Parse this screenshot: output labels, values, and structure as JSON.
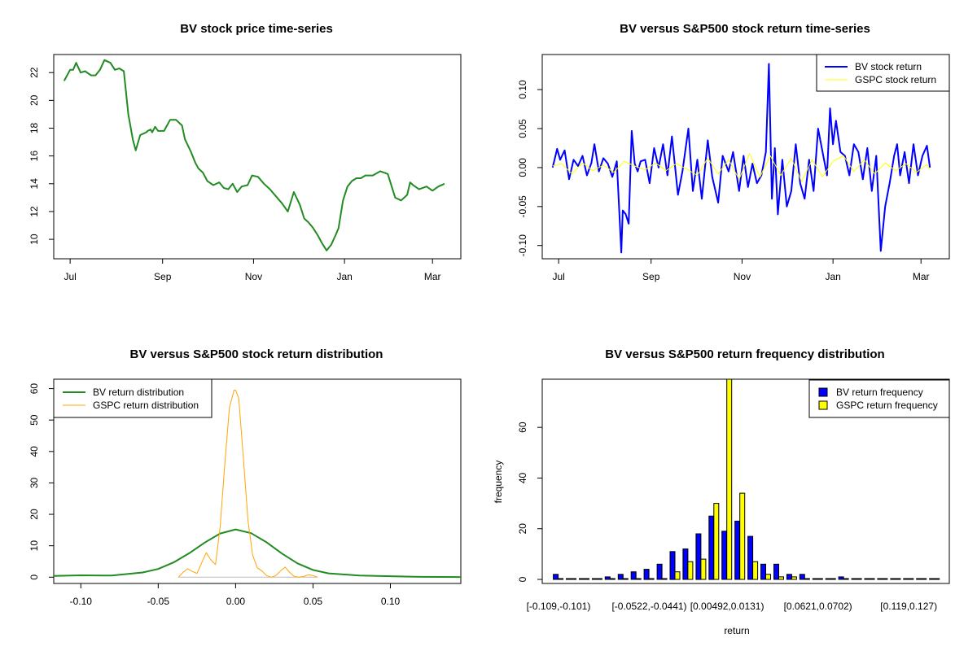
{
  "chart_data": [
    {
      "id": "price",
      "type": "line",
      "title": "BV stock price time-series",
      "xlabel": "",
      "ylabel": "",
      "x_ticks": [
        "Jul",
        "Sep",
        "Nov",
        "Jan",
        "Mar"
      ],
      "y_ticks": [
        "10",
        "12",
        "14",
        "16",
        "18",
        "20",
        "22"
      ],
      "x_range": [
        "2014-06-20",
        "2015-03-20"
      ],
      "x_tick_dates": [
        "2014-07-01",
        "2014-09-01",
        "2014-11-01",
        "2015-01-01",
        "2015-03-01"
      ],
      "ylim": [
        8.6,
        23.3
      ],
      "grid": false,
      "series": [
        {
          "name": "",
          "color": "#228B22",
          "x": [
            "2014-06-27",
            "2014-07-01",
            "2014-07-03",
            "2014-07-05",
            "2014-07-08",
            "2014-07-11",
            "2014-07-15",
            "2014-07-18",
            "2014-07-21",
            "2014-07-24",
            "2014-07-28",
            "2014-07-31",
            "2014-08-03",
            "2014-08-06",
            "2014-08-09",
            "2014-08-12",
            "2014-08-14",
            "2014-08-17",
            "2014-08-19",
            "2014-08-21",
            "2014-08-22",
            "2014-08-24",
            "2014-08-25",
            "2014-08-27",
            "2014-08-29",
            "2014-09-02",
            "2014-09-06",
            "2014-09-10",
            "2014-09-14",
            "2014-09-16",
            "2014-09-20",
            "2014-09-23",
            "2014-09-25",
            "2014-09-28",
            "2014-10-01",
            "2014-10-05",
            "2014-10-09",
            "2014-10-12",
            "2014-10-15",
            "2014-10-18",
            "2014-10-21",
            "2014-10-24",
            "2014-10-28",
            "2014-10-31",
            "2014-11-04",
            "2014-11-08",
            "2014-11-12",
            "2014-11-16",
            "2014-11-20",
            "2014-11-24",
            "2014-11-28",
            "2014-12-02",
            "2014-12-05",
            "2014-12-08",
            "2014-12-11",
            "2014-12-14",
            "2014-12-17",
            "2014-12-20",
            "2014-12-23",
            "2014-12-26",
            "2014-12-28",
            "2014-12-31",
            "2015-01-03",
            "2015-01-06",
            "2015-01-09",
            "2015-01-12",
            "2015-01-15",
            "2015-01-20",
            "2015-01-25",
            "2015-01-30",
            "2015-02-04",
            "2015-02-08",
            "2015-02-12",
            "2015-02-14",
            "2015-02-16",
            "2015-02-20",
            "2015-02-25",
            "2015-03-01",
            "2015-03-05",
            "2015-03-09"
          ],
          "values": [
            21.4,
            22.2,
            22.2,
            22.7,
            22.0,
            22.1,
            21.8,
            21.8,
            22.2,
            22.9,
            22.7,
            22.2,
            22.3,
            22.1,
            19.0,
            17.2,
            16.4,
            17.5,
            17.6,
            17.7,
            17.8,
            17.9,
            17.7,
            18.1,
            17.8,
            17.8,
            18.6,
            18.6,
            18.2,
            17.2,
            16.3,
            15.5,
            15.1,
            14.8,
            14.2,
            13.9,
            14.1,
            13.7,
            13.6,
            14.0,
            13.4,
            13.8,
            13.9,
            14.6,
            14.5,
            14.0,
            13.6,
            13.1,
            12.6,
            12.0,
            13.4,
            12.5,
            11.5,
            11.2,
            10.8,
            10.3,
            9.7,
            9.2,
            9.6,
            10.3,
            10.8,
            12.8,
            13.8,
            14.2,
            14.4,
            14.4,
            14.6,
            14.6,
            14.9,
            14.7,
            13.0,
            12.8,
            13.2,
            14.1,
            13.9,
            13.6,
            13.8,
            13.5,
            13.8,
            14.0
          ]
        }
      ]
    },
    {
      "id": "returns",
      "type": "line",
      "title": "BV versus S&P500 stock return time-series",
      "xlabel": "",
      "ylabel": "",
      "x_ticks": [
        "Jul",
        "Sep",
        "Nov",
        "Jan",
        "Mar"
      ],
      "y_ticks": [
        "-0.10",
        "-0.05",
        "0.00",
        "0.05",
        "0.10"
      ],
      "x_range": [
        "2014-06-20",
        "2015-03-20"
      ],
      "x_tick_dates": [
        "2014-07-01",
        "2014-09-01",
        "2014-11-01",
        "2015-01-01",
        "2015-03-01"
      ],
      "ylim": [
        -0.117,
        0.145
      ],
      "grid": false,
      "legend": "top-right",
      "series": [
        {
          "name": "BV stock return",
          "color": "#0000FF",
          "x": [
            "2014-06-27",
            "2014-06-30",
            "2014-07-02",
            "2014-07-05",
            "2014-07-08",
            "2014-07-11",
            "2014-07-14",
            "2014-07-17",
            "2014-07-20",
            "2014-07-23",
            "2014-07-25",
            "2014-07-28",
            "2014-07-31",
            "2014-08-03",
            "2014-08-06",
            "2014-08-09",
            "2014-08-12",
            "2014-08-13",
            "2014-08-15",
            "2014-08-17",
            "2014-08-19",
            "2014-08-21",
            "2014-08-23",
            "2014-08-25",
            "2014-08-28",
            "2014-08-31",
            "2014-09-03",
            "2014-09-06",
            "2014-09-09",
            "2014-09-12",
            "2014-09-15",
            "2014-09-19",
            "2014-09-22",
            "2014-09-26",
            "2014-09-29",
            "2014-10-02",
            "2014-10-05",
            "2014-10-09",
            "2014-10-12",
            "2014-10-16",
            "2014-10-19",
            "2014-10-23",
            "2014-10-26",
            "2014-10-30",
            "2014-11-02",
            "2014-11-05",
            "2014-11-08",
            "2014-11-11",
            "2014-11-14",
            "2014-11-17",
            "2014-11-19",
            "2014-11-21",
            "2014-11-23",
            "2014-11-25",
            "2014-11-28",
            "2014-12-01",
            "2014-12-04",
            "2014-12-07",
            "2014-12-10",
            "2014-12-13",
            "2014-12-16",
            "2014-12-19",
            "2014-12-22",
            "2014-12-25",
            "2014-12-28",
            "2014-12-30",
            "2015-01-01",
            "2015-01-03",
            "2015-01-06",
            "2015-01-09",
            "2015-01-12",
            "2015-01-15",
            "2015-01-18",
            "2015-01-21",
            "2015-01-24",
            "2015-01-27",
            "2015-01-30",
            "2015-02-02",
            "2015-02-05",
            "2015-02-08",
            "2015-02-11",
            "2015-02-13",
            "2015-02-15",
            "2015-02-18",
            "2015-02-21",
            "2015-02-24",
            "2015-02-27",
            "2015-03-02",
            "2015-03-05",
            "2015-03-07"
          ],
          "values": [
            0.0,
            0.024,
            0.01,
            0.022,
            -0.015,
            0.01,
            0.002,
            0.015,
            -0.01,
            0.006,
            0.03,
            -0.005,
            0.012,
            0.005,
            -0.012,
            0.008,
            -0.109,
            -0.055,
            -0.06,
            -0.072,
            0.047,
            0.005,
            -0.005,
            0.008,
            0.01,
            -0.02,
            0.025,
            0.0,
            0.03,
            -0.01,
            0.04,
            -0.035,
            -0.005,
            0.05,
            -0.03,
            0.01,
            -0.04,
            0.035,
            -0.012,
            -0.045,
            0.015,
            -0.005,
            0.02,
            -0.03,
            0.015,
            -0.025,
            0.005,
            -0.02,
            -0.01,
            0.02,
            0.133,
            -0.04,
            0.025,
            -0.06,
            0.01,
            -0.05,
            -0.03,
            0.03,
            -0.02,
            -0.04,
            0.01,
            -0.03,
            0.05,
            0.02,
            -0.01,
            0.076,
            0.03,
            0.06,
            0.02,
            0.015,
            -0.01,
            0.03,
            0.02,
            -0.015,
            0.025,
            -0.03,
            0.015,
            -0.107,
            -0.05,
            -0.02,
            0.015,
            0.03,
            -0.01,
            0.02,
            -0.02,
            0.03,
            -0.01,
            0.015,
            0.028,
            0.0
          ]
        },
        {
          "name": "GSPC stock return",
          "color": "#FFFF00",
          "x": [
            "2014-06-27",
            "2014-07-03",
            "2014-07-10",
            "2014-07-17",
            "2014-07-24",
            "2014-07-31",
            "2014-08-07",
            "2014-08-14",
            "2014-08-21",
            "2014-08-28",
            "2014-09-04",
            "2014-09-11",
            "2014-09-18",
            "2014-09-25",
            "2014-10-02",
            "2014-10-09",
            "2014-10-16",
            "2014-10-23",
            "2014-10-30",
            "2014-11-06",
            "2014-11-13",
            "2014-11-20",
            "2014-11-27",
            "2014-12-04",
            "2014-12-11",
            "2014-12-18",
            "2014-12-25",
            "2015-01-01",
            "2015-01-08",
            "2015-01-15",
            "2015-01-22",
            "2015-01-29",
            "2015-02-05",
            "2015-02-12",
            "2015-02-19",
            "2015-02-26",
            "2015-03-05",
            "2015-03-07"
          ],
          "values": [
            0.002,
            0.005,
            -0.008,
            0.006,
            -0.004,
            0.003,
            -0.006,
            0.008,
            0.002,
            -0.003,
            0.006,
            -0.004,
            0.005,
            -0.002,
            -0.01,
            0.012,
            -0.008,
            0.01,
            -0.015,
            0.018,
            -0.012,
            0.015,
            -0.01,
            0.012,
            -0.018,
            0.01,
            -0.012,
            0.008,
            0.015,
            -0.005,
            0.01,
            -0.008,
            0.006,
            -0.004,
            0.005,
            -0.006,
            0.004,
            -0.003
          ]
        }
      ]
    },
    {
      "id": "density",
      "type": "line",
      "title": "BV versus S&P500 stock return distribution",
      "xlabel": "",
      "ylabel": "",
      "x_ticks": [
        "-0.10",
        "-0.05",
        "0.00",
        "0.05",
        "0.10"
      ],
      "y_ticks": [
        "0",
        "10",
        "20",
        "30",
        "40",
        "50",
        "60"
      ],
      "xlim": [
        -0.1175,
        0.1455
      ],
      "ylim": [
        -2,
        63
      ],
      "grid": false,
      "legend": "top-left",
      "series": [
        {
          "name": "BV return distribution",
          "color": "#228B22",
          "x": [
            -0.1175,
            -0.1,
            -0.08,
            -0.06,
            -0.05,
            -0.04,
            -0.03,
            -0.02,
            -0.01,
            0.0,
            0.01,
            0.02,
            0.03,
            0.04,
            0.05,
            0.06,
            0.08,
            0.1,
            0.12,
            0.1455
          ],
          "values": [
            0.4,
            0.6,
            0.5,
            1.5,
            2.6,
            4.7,
            7.6,
            11.0,
            13.9,
            15.2,
            14.0,
            11.1,
            7.5,
            4.4,
            2.3,
            1.2,
            0.5,
            0.3,
            0.1,
            0.05
          ]
        },
        {
          "name": "GSPC return distribution",
          "color": "#FFA500",
          "x": [
            -0.037,
            -0.034,
            -0.031,
            -0.028,
            -0.025,
            -0.022,
            -0.019,
            -0.016,
            -0.013,
            -0.01,
            -0.007,
            -0.004,
            -0.001,
            0.0,
            0.002,
            0.005,
            0.008,
            0.011,
            0.014,
            0.017,
            0.02,
            0.023,
            0.026,
            0.029,
            0.032,
            0.035,
            0.038,
            0.041,
            0.044,
            0.047,
            0.05,
            0.053
          ],
          "values": [
            0,
            1.5,
            2.7,
            1.8,
            1.2,
            4.5,
            7.8,
            5.5,
            4.0,
            16.0,
            36.0,
            54.0,
            59.5,
            59.5,
            57.0,
            38.0,
            18.0,
            7.0,
            3.0,
            2.0,
            0.5,
            0.0,
            0.5,
            2.0,
            3.2,
            1.5,
            0.2,
            0.0,
            0.2,
            0.8,
            0.5,
            0.0
          ]
        }
      ]
    },
    {
      "id": "histogram",
      "type": "bar",
      "title": "BV versus S&P500 return frequency distribution",
      "xlabel": "return",
      "ylabel": "frequency",
      "x_ticks": [
        "[-0.109,-0.101)",
        "[-0.0522,-0.0441)",
        "[0.00492,0.0131)",
        "[0.0621,0.0702)",
        "[0.119,0.127)"
      ],
      "y_ticks": [
        "0",
        "20",
        "40",
        "60"
      ],
      "ylim": [
        -1.6,
        79
      ],
      "grid": false,
      "legend": "top-right",
      "categories_count": 30,
      "series": [
        {
          "name": "BV return frequency",
          "color": "#0000FF",
          "values": [
            2,
            0,
            0,
            0,
            1,
            2,
            3,
            4,
            6,
            11,
            12,
            18,
            25,
            19,
            23,
            17,
            6,
            6,
            2,
            2,
            0,
            0,
            1,
            0,
            0,
            0,
            0,
            0,
            0,
            0
          ]
        },
        {
          "name": "GSPC return frequency",
          "color": "#FFFF00",
          "values": [
            0,
            0,
            0,
            0,
            0,
            0,
            0,
            0,
            0,
            3,
            7,
            8,
            30,
            79,
            34,
            7,
            2,
            1,
            1,
            0,
            0,
            0,
            0,
            0,
            0,
            0,
            0,
            0,
            0,
            0
          ]
        }
      ]
    }
  ]
}
